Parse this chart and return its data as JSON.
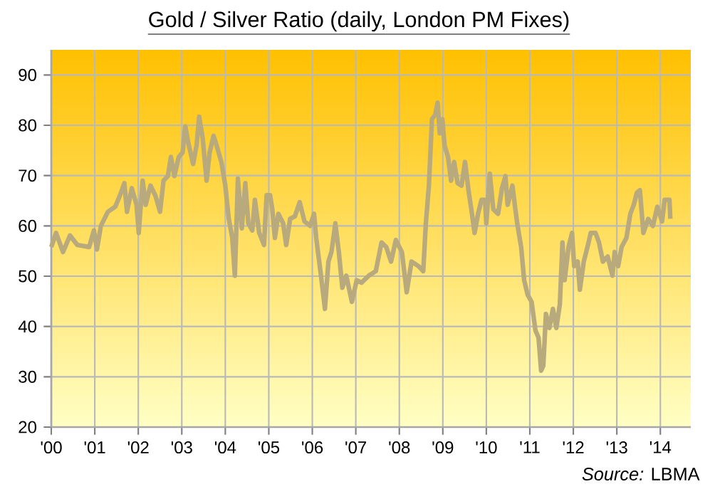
{
  "chart_data": {
    "type": "line",
    "title": "Gold / Silver Ratio (daily, London PM Fixes)",
    "x": [
      2000.0,
      2000.11,
      2000.27,
      2000.43,
      2000.6,
      2000.87,
      2000.98,
      2001.05,
      2001.14,
      2001.3,
      2001.47,
      2001.58,
      2001.68,
      2001.74,
      2001.85,
      2001.96,
      2002.01,
      2002.1,
      2002.17,
      2002.28,
      2002.39,
      2002.5,
      2002.58,
      2002.68,
      2002.75,
      2002.83,
      2002.93,
      2003.02,
      2003.08,
      2003.15,
      2003.26,
      2003.34,
      2003.4,
      2003.48,
      2003.57,
      2003.64,
      2003.73,
      2003.8,
      2003.91,
      2004.0,
      2004.08,
      2004.16,
      2004.22,
      2004.29,
      2004.38,
      2004.46,
      2004.53,
      2004.62,
      2004.68,
      2004.78,
      2004.89,
      2004.95,
      2005.03,
      2005.08,
      2005.14,
      2005.22,
      2005.33,
      2005.4,
      2005.49,
      2005.6,
      2005.71,
      2005.82,
      2005.95,
      2006.04,
      2006.09,
      2006.2,
      2006.29,
      2006.37,
      2006.44,
      2006.53,
      2006.61,
      2006.69,
      2006.78,
      2006.91,
      2007.02,
      2007.13,
      2007.3,
      2007.46,
      2007.59,
      2007.7,
      2007.81,
      2007.92,
      2008.06,
      2008.17,
      2008.28,
      2008.44,
      2008.55,
      2008.61,
      2008.68,
      2008.75,
      2008.83,
      2008.88,
      2008.93,
      2008.99,
      2009.04,
      2009.12,
      2009.19,
      2009.26,
      2009.34,
      2009.43,
      2009.51,
      2009.59,
      2009.67,
      2009.73,
      2009.81,
      2009.89,
      2009.97,
      2010.0,
      2010.08,
      2010.16,
      2010.27,
      2010.36,
      2010.44,
      2010.49,
      2010.6,
      2010.66,
      2010.71,
      2010.8,
      2010.87,
      2010.95,
      2011.04,
      2011.13,
      2011.2,
      2011.26,
      2011.31,
      2011.37,
      2011.45,
      2011.53,
      2011.61,
      2011.69,
      2011.75,
      2011.8,
      2011.89,
      2011.97,
      2012.02,
      2012.1,
      2012.15,
      2012.24,
      2012.35,
      2012.4,
      2012.51,
      2012.59,
      2012.68,
      2012.79,
      2012.9,
      2012.95,
      2013.03,
      2013.11,
      2013.22,
      2013.31,
      2013.39,
      2013.46,
      2013.53,
      2013.61,
      2013.72,
      2013.83,
      2013.93,
      2014.04,
      2014.1,
      2014.21,
      2014.23
    ],
    "series": [
      {
        "color": "#b8aa7c",
        "values": [
          55.8,
          58.6,
          54.8,
          58.1,
          56.2,
          55.8,
          59.1,
          55.3,
          60.0,
          62.8,
          63.8,
          66.1,
          68.5,
          62.8,
          67.5,
          64.2,
          58.6,
          69.0,
          64.2,
          68.0,
          66.1,
          62.8,
          69.0,
          69.9,
          73.7,
          69.9,
          73.7,
          74.6,
          79.8,
          76.5,
          72.3,
          76.0,
          81.7,
          77.5,
          69.0,
          74.6,
          77.9,
          76.0,
          72.7,
          68.0,
          61.4,
          57.6,
          50.1,
          69.4,
          59.5,
          68.5,
          60.5,
          59.1,
          65.2,
          58.6,
          56.2,
          66.1,
          66.1,
          63.3,
          57.6,
          62.4,
          60.5,
          56.2,
          61.4,
          61.9,
          64.7,
          60.9,
          60.0,
          62.4,
          57.6,
          50.1,
          43.5,
          52.9,
          54.8,
          60.5,
          54.8,
          47.7,
          50.1,
          44.9,
          49.2,
          48.7,
          50.1,
          51.0,
          56.7,
          55.8,
          52.9,
          57.2,
          54.8,
          46.8,
          52.9,
          52.0,
          51.0,
          60.5,
          68.0,
          81.2,
          82.2,
          84.5,
          78.4,
          81.2,
          76.0,
          73.7,
          69.0,
          72.7,
          68.5,
          68.0,
          72.7,
          67.1,
          62.4,
          58.6,
          62.4,
          65.2,
          65.2,
          60.5,
          70.4,
          63.3,
          62.4,
          67.5,
          69.9,
          64.2,
          68.0,
          63.8,
          60.5,
          55.8,
          49.2,
          46.3,
          44.9,
          39.2,
          37.8,
          31.2,
          32.2,
          42.5,
          39.7,
          43.5,
          39.7,
          44.4,
          56.7,
          49.2,
          55.8,
          58.6,
          52.0,
          52.9,
          47.3,
          52.9,
          56.7,
          58.6,
          58.6,
          56.7,
          52.9,
          53.9,
          50.1,
          54.8,
          52.0,
          55.8,
          57.6,
          62.4,
          64.2,
          66.6,
          67.1,
          58.6,
          61.4,
          60.0,
          63.8,
          60.9,
          65.2,
          65.2,
          61.4
        ]
      }
    ],
    "xlim": [
      2000,
      2014.7
    ],
    "xticks": [
      {
        "value": 2000,
        "label": "'00"
      },
      {
        "value": 2001,
        "label": "'01"
      },
      {
        "value": 2002,
        "label": "'02"
      },
      {
        "value": 2003,
        "label": "'03"
      },
      {
        "value": 2004,
        "label": "'04"
      },
      {
        "value": 2005,
        "label": "'05"
      },
      {
        "value": 2006,
        "label": "'06"
      },
      {
        "value": 2007,
        "label": "'07"
      },
      {
        "value": 2008,
        "label": "'08"
      },
      {
        "value": 2009,
        "label": "'09"
      },
      {
        "value": 2010,
        "label": "'10"
      },
      {
        "value": 2011,
        "label": "'11"
      },
      {
        "value": 2012,
        "label": "'12"
      },
      {
        "value": 2013,
        "label": "'13"
      },
      {
        "value": 2014,
        "label": "'14"
      }
    ],
    "ylim": [
      20,
      95
    ],
    "yticks": [
      20,
      30,
      40,
      50,
      60,
      70,
      80,
      90
    ],
    "grid": true,
    "annotations": [
      "*Source:* LBMA"
    ]
  }
}
